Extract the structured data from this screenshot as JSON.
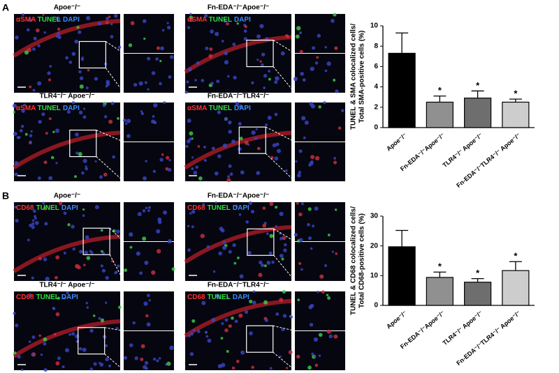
{
  "panels": [
    {
      "letter": "A",
      "images": [
        {
          "title": "Apoe⁻/⁻",
          "stain": [
            "αSMA",
            "TUNEL",
            "DAPI"
          ]
        },
        {
          "title": "Fn-EDA⁻/⁻Apoe⁻/⁻",
          "stain": [
            "αSMA",
            "TUNEL",
            "DAPI"
          ]
        },
        {
          "title": "TLR4⁻/⁻ Apoe⁻/⁻",
          "stain": [
            "αSMA",
            "TUNEL",
            "DAPI"
          ]
        },
        {
          "title": "Fn-EDA⁻/⁻TLR4⁻/⁻",
          "stain": [
            "αSMA",
            "TUNEL",
            "DAPI"
          ]
        }
      ]
    },
    {
      "letter": "B",
      "images": [
        {
          "title": "Apoe⁻/⁻",
          "stain": [
            "CD68",
            "TUNEL",
            "DAPI"
          ]
        },
        {
          "title": "Fn-EDA⁻/⁻Apoe⁻/⁻",
          "stain": [
            "CD68",
            "TUNEL",
            "DAPI"
          ]
        },
        {
          "title": "TLR4⁻/⁻ Apoe⁻/⁻",
          "stain": [
            "CD68",
            "TUNEL",
            "DAPI"
          ]
        },
        {
          "title": "Fn-EDA⁻/⁻TLR4⁻/⁻",
          "stain": [
            "CD68",
            "TUNEL",
            "DAPI"
          ]
        }
      ]
    }
  ],
  "chart_data": [
    {
      "type": "bar",
      "ylabel": [
        "TUNEL & SMA colocalized cells/",
        "Total SMA-positive cells (%)"
      ],
      "categories": [
        "Apoe⁻/⁻",
        "Fn-EDA⁻/⁻Apoe⁻/⁻",
        "TLR4⁻/⁻ Apoe⁻/⁻",
        "Fn-EDA⁻/⁻TLR4⁻/⁻ Apoe⁻/⁻"
      ],
      "values": [
        7.3,
        2.5,
        2.9,
        2.5
      ],
      "errors": [
        2.0,
        0.6,
        0.7,
        0.3
      ],
      "colors": [
        "#000000",
        "#909090",
        "#6e6e6e",
        "#cdcdcd"
      ],
      "significance": [
        null,
        "*",
        "*",
        "*"
      ],
      "ylim": [
        0,
        10
      ],
      "yticks": [
        0,
        2,
        4,
        6,
        8,
        10
      ]
    },
    {
      "type": "bar",
      "ylabel": [
        "TUNEL & CD68 colocalized cells/",
        "Total CD68-positive cells (%)"
      ],
      "categories": [
        "Apoe⁻/⁻",
        "Fn-EDA⁻/⁻Apoe⁻/⁻",
        "TLR4⁻/⁻ Apoe⁻/⁻",
        "Fn-EDA⁻/⁻TLR4⁻/⁻ Apoe⁻/⁻"
      ],
      "values": [
        19.7,
        9.4,
        7.8,
        11.7
      ],
      "errors": [
        5.5,
        1.8,
        1.2,
        3.0
      ],
      "colors": [
        "#000000",
        "#909090",
        "#6e6e6e",
        "#cdcdcd"
      ],
      "significance": [
        null,
        "*",
        "*",
        "*"
      ],
      "ylim": [
        0,
        30
      ],
      "yticks": [
        0,
        10,
        20,
        30
      ]
    }
  ]
}
